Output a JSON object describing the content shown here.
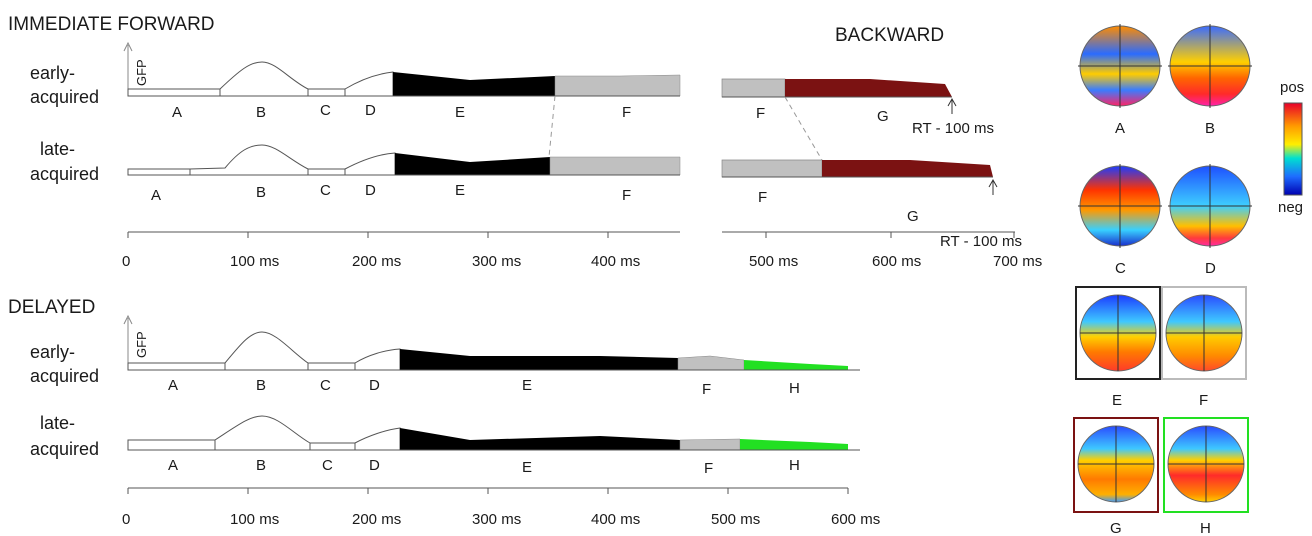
{
  "sections": {
    "immediate": "IMMEDIATE FORWARD",
    "backward": "BACKWARD",
    "delayed": "DELAYED"
  },
  "gfp_label": "GFP",
  "row_labels": {
    "early": [
      "early-",
      "acquired"
    ],
    "late": [
      "late-",
      "acquired"
    ]
  },
  "rt_label": "RT - 100 ms",
  "axes": {
    "immediate_forward_ticks": [
      "0",
      "100 ms",
      "200 ms",
      "300 ms",
      "400 ms"
    ],
    "backward_ticks": [
      "500 ms",
      "600 ms",
      "700 ms"
    ],
    "delayed_ticks": [
      "0",
      "100 ms",
      "200 ms",
      "300 ms",
      "400 ms",
      "500 ms",
      "600 ms"
    ]
  },
  "segments": {
    "immediate_early": [
      "A",
      "B",
      "C",
      "D",
      "E",
      "F"
    ],
    "immediate_late": [
      "A",
      "B",
      "C",
      "D",
      "E",
      "F"
    ],
    "backward_early": [
      "F",
      "G"
    ],
    "backward_late": [
      "F",
      "G"
    ],
    "delayed_early": [
      "A",
      "B",
      "C",
      "D",
      "E",
      "F",
      "H"
    ],
    "delayed_late": [
      "A",
      "B",
      "C",
      "D",
      "E",
      "F",
      "H"
    ]
  },
  "colors": {
    "E": "#000000",
    "F": "#c0c0c0",
    "G": "#7b1212",
    "H": "#22e022"
  },
  "map_labels": [
    "A",
    "B",
    "C",
    "D",
    "E",
    "F",
    "G",
    "H"
  ],
  "scale": {
    "pos": "pos",
    "neg": "neg"
  }
}
